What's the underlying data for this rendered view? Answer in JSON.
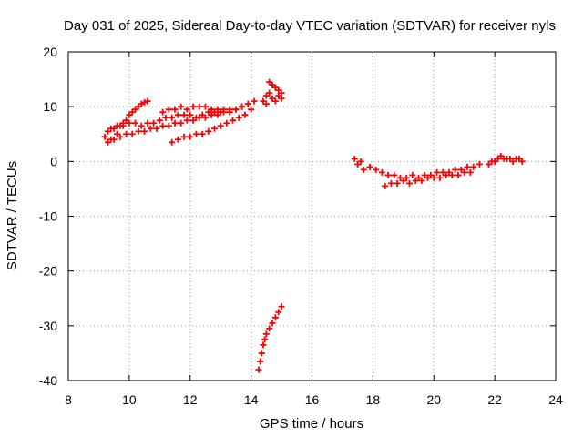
{
  "chart_data": {
    "type": "scatter",
    "title": "Day 031 of 2025, Sidereal Day-to-day VTEC variation (SDTVAR) for receiver nyls",
    "xlabel": "GPS time / hours",
    "ylabel": "SDTVAR / TECUs",
    "xlim": [
      8,
      24
    ],
    "ylim": [
      -40,
      20
    ],
    "xticks": [
      8,
      10,
      12,
      14,
      16,
      18,
      20,
      22,
      24
    ],
    "yticks": [
      -40,
      -30,
      -20,
      -10,
      0,
      10,
      20
    ],
    "grid": true,
    "marker": "plus",
    "color": "#ff0000",
    "series": [
      {
        "points": [
          [
            9.2,
            4.5
          ],
          [
            9.3,
            5.5
          ],
          [
            9.4,
            4.0
          ],
          [
            9.5,
            6.0
          ],
          [
            9.6,
            5.0
          ],
          [
            9.7,
            6.5
          ],
          [
            9.8,
            7.0
          ],
          [
            9.9,
            7.5
          ],
          [
            10.0,
            8.5
          ],
          [
            10.1,
            9.0
          ],
          [
            10.2,
            9.5
          ],
          [
            10.3,
            10.0
          ],
          [
            10.4,
            10.5
          ],
          [
            10.5,
            10.8
          ],
          [
            10.6,
            11.0
          ],
          [
            9.3,
            3.5
          ],
          [
            9.5,
            4.0
          ],
          [
            9.7,
            4.5
          ],
          [
            9.9,
            5.0
          ],
          [
            10.1,
            5.0
          ],
          [
            10.3,
            5.5
          ],
          [
            10.5,
            5.5
          ],
          [
            10.7,
            6.0
          ],
          [
            10.9,
            6.0
          ],
          [
            11.1,
            6.5
          ],
          [
            11.3,
            6.5
          ],
          [
            11.5,
            7.0
          ],
          [
            11.7,
            7.0
          ],
          [
            11.9,
            7.5
          ],
          [
            12.1,
            7.5
          ],
          [
            12.3,
            8.0
          ],
          [
            12.5,
            8.0
          ],
          [
            12.7,
            8.5
          ],
          [
            12.9,
            8.5
          ],
          [
            13.1,
            9.0
          ],
          [
            13.3,
            9.5
          ],
          [
            13.5,
            9.5
          ],
          [
            13.7,
            10.0
          ],
          [
            13.9,
            10.5
          ],
          [
            14.1,
            11.0
          ],
          [
            9.4,
            6.0
          ],
          [
            9.6,
            6.5
          ],
          [
            9.8,
            6.5
          ],
          [
            10.0,
            7.0
          ],
          [
            10.2,
            7.0
          ],
          [
            10.4,
            6.5
          ],
          [
            10.6,
            7.0
          ],
          [
            10.8,
            7.0
          ],
          [
            11.0,
            7.5
          ],
          [
            11.2,
            8.0
          ],
          [
            11.4,
            8.0
          ],
          [
            11.6,
            8.5
          ],
          [
            11.8,
            8.5
          ],
          [
            12.0,
            8.5
          ],
          [
            12.2,
            8.0
          ],
          [
            12.4,
            8.5
          ],
          [
            12.6,
            9.0
          ],
          [
            12.8,
            9.0
          ],
          [
            13.0,
            9.0
          ],
          [
            11.1,
            9.0
          ],
          [
            11.3,
            9.5
          ],
          [
            11.5,
            9.5
          ],
          [
            11.7,
            10.0
          ],
          [
            11.9,
            9.5
          ],
          [
            12.1,
            10.0
          ],
          [
            12.3,
            10.0
          ],
          [
            12.5,
            10.0
          ],
          [
            12.7,
            9.5
          ],
          [
            12.9,
            9.5
          ],
          [
            13.1,
            9.5
          ],
          [
            13.3,
            9.0
          ],
          [
            13.5,
            9.5
          ],
          [
            13.7,
            10.0
          ],
          [
            11.4,
            3.5
          ],
          [
            11.6,
            4.0
          ],
          [
            11.8,
            4.5
          ],
          [
            12.0,
            4.5
          ],
          [
            12.2,
            5.0
          ],
          [
            12.4,
            5.0
          ],
          [
            12.6,
            5.5
          ],
          [
            12.8,
            6.0
          ],
          [
            13.0,
            6.5
          ],
          [
            13.2,
            7.0
          ],
          [
            13.4,
            7.5
          ],
          [
            13.6,
            8.0
          ],
          [
            13.8,
            8.5
          ],
          [
            14.0,
            9.5
          ],
          [
            14.6,
            14.5
          ],
          [
            14.7,
            14.0
          ],
          [
            14.8,
            13.5
          ],
          [
            14.9,
            13.0
          ],
          [
            15.0,
            12.5
          ],
          [
            14.4,
            11.0
          ],
          [
            14.5,
            12.0
          ],
          [
            14.6,
            12.5
          ],
          [
            14.7,
            11.5
          ],
          [
            14.8,
            11.0
          ],
          [
            14.9,
            12.0
          ],
          [
            15.0,
            11.5
          ],
          [
            14.5,
            10.5
          ],
          [
            14.25,
            -38.0
          ],
          [
            14.3,
            -36.5
          ],
          [
            14.35,
            -35.0
          ],
          [
            14.4,
            -33.5
          ],
          [
            14.45,
            -32.5
          ],
          [
            14.5,
            -31.5
          ],
          [
            14.6,
            -30.5
          ],
          [
            14.7,
            -29.5
          ],
          [
            14.8,
            -28.5
          ],
          [
            14.9,
            -27.5
          ],
          [
            15.0,
            -26.5
          ],
          [
            17.4,
            0.5
          ],
          [
            17.5,
            -0.5
          ],
          [
            17.6,
            0.0
          ],
          [
            17.7,
            -1.5
          ],
          [
            17.9,
            -1.0
          ],
          [
            18.1,
            -1.5
          ],
          [
            18.3,
            -2.0
          ],
          [
            18.5,
            -2.5
          ],
          [
            18.7,
            -2.5
          ],
          [
            18.9,
            -3.0
          ],
          [
            19.1,
            -3.0
          ],
          [
            19.3,
            -2.5
          ],
          [
            19.5,
            -3.0
          ],
          [
            19.7,
            -2.5
          ],
          [
            19.9,
            -2.5
          ],
          [
            20.1,
            -2.0
          ],
          [
            20.3,
            -2.0
          ],
          [
            20.5,
            -2.0
          ],
          [
            20.7,
            -1.5
          ],
          [
            20.9,
            -1.5
          ],
          [
            21.1,
            -1.0
          ],
          [
            21.3,
            -1.0
          ],
          [
            21.5,
            -0.5
          ],
          [
            18.4,
            -4.5
          ],
          [
            18.6,
            -4.0
          ],
          [
            18.8,
            -4.0
          ],
          [
            19.0,
            -3.5
          ],
          [
            19.2,
            -4.0
          ],
          [
            19.4,
            -3.5
          ],
          [
            19.6,
            -3.5
          ],
          [
            19.8,
            -3.0
          ],
          [
            20.0,
            -3.0
          ],
          [
            20.2,
            -3.0
          ],
          [
            20.4,
            -2.5
          ],
          [
            20.6,
            -2.5
          ],
          [
            20.8,
            -2.5
          ],
          [
            21.0,
            -2.0
          ],
          [
            21.2,
            -2.0
          ],
          [
            21.8,
            -0.5
          ],
          [
            21.9,
            0.0
          ],
          [
            22.0,
            0.0
          ],
          [
            22.1,
            0.5
          ],
          [
            22.2,
            1.0
          ],
          [
            22.3,
            0.5
          ],
          [
            22.4,
            0.5
          ],
          [
            22.5,
            0.5
          ],
          [
            22.6,
            0.0
          ],
          [
            22.7,
            0.5
          ],
          [
            22.8,
            0.5
          ],
          [
            22.9,
            0.0
          ]
        ]
      }
    ]
  }
}
